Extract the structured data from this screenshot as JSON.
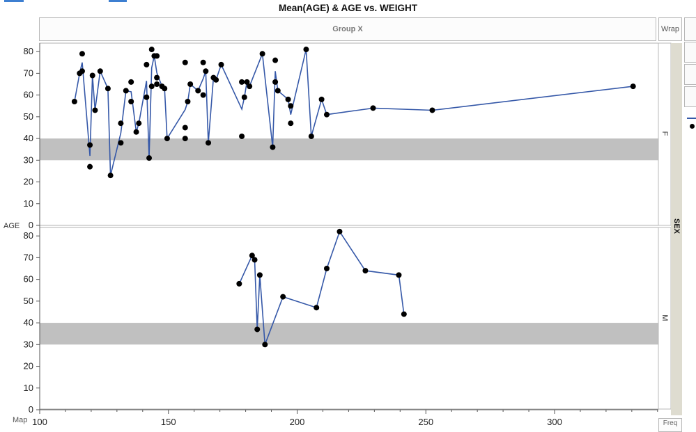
{
  "title": "Mean(AGE) & AGE vs. WEIGHT",
  "group_x_label": "Group X",
  "wrap_label": "Wrap",
  "map_label": "Map",
  "freq_label": "Freq",
  "colors": {
    "line": "#3558a8",
    "point": "#000000",
    "band": "#c0c0c0",
    "strip": "#dedcd0"
  },
  "chart_data": {
    "type": "line",
    "title": "Mean(AGE) & AGE vs. WEIGHT",
    "xlabel": "",
    "ylabel": "AGE",
    "xlim": [
      100,
      340
    ],
    "ylim": [
      0,
      85
    ],
    "x_ticks": [
      100,
      150,
      200,
      250,
      300
    ],
    "y_ticks": [
      0,
      10,
      20,
      30,
      40,
      50,
      60,
      70,
      80
    ],
    "group_y_label": "SEX",
    "reference_band": [
      30,
      40
    ],
    "panels": [
      {
        "group": "F",
        "points": [
          [
            113.5,
            57
          ],
          [
            115.5,
            70
          ],
          [
            116.5,
            71
          ],
          [
            116.5,
            79
          ],
          [
            119.5,
            27
          ],
          [
            119.5,
            37
          ],
          [
            120.5,
            69
          ],
          [
            121.5,
            53
          ],
          [
            123.5,
            71
          ],
          [
            126.5,
            63
          ],
          [
            127.5,
            23
          ],
          [
            131.5,
            38
          ],
          [
            131.5,
            47
          ],
          [
            133.5,
            62
          ],
          [
            135.5,
            66
          ],
          [
            135.5,
            57
          ],
          [
            137.5,
            43
          ],
          [
            138.5,
            47
          ],
          [
            141.5,
            59
          ],
          [
            141.5,
            74
          ],
          [
            142.5,
            31
          ],
          [
            143.5,
            64
          ],
          [
            143.5,
            81
          ],
          [
            144.5,
            78
          ],
          [
            145.5,
            65
          ],
          [
            145.5,
            68
          ],
          [
            145.5,
            78
          ],
          [
            147.5,
            64
          ],
          [
            148.5,
            63
          ],
          [
            149.5,
            40
          ],
          [
            156.5,
            75
          ],
          [
            156.5,
            45
          ],
          [
            156.5,
            40
          ],
          [
            157.5,
            57
          ],
          [
            158.5,
            65
          ],
          [
            161.5,
            62
          ],
          [
            163.5,
            60
          ],
          [
            163.5,
            75
          ],
          [
            164.5,
            71
          ],
          [
            165.5,
            38
          ],
          [
            167.5,
            68
          ],
          [
            168.5,
            67
          ],
          [
            170.5,
            74
          ],
          [
            178.5,
            41
          ],
          [
            178.5,
            66
          ],
          [
            179.5,
            59
          ],
          [
            180.5,
            66
          ],
          [
            181.5,
            64
          ],
          [
            186.5,
            79
          ],
          [
            190.5,
            36
          ],
          [
            191.5,
            66
          ],
          [
            191.5,
            76
          ],
          [
            192.5,
            62
          ],
          [
            196.5,
            58
          ],
          [
            197.5,
            55
          ],
          [
            197.5,
            47
          ],
          [
            203.5,
            81
          ],
          [
            205.5,
            41
          ],
          [
            209.5,
            58
          ],
          [
            211.5,
            51
          ],
          [
            229.5,
            54
          ],
          [
            252.5,
            53
          ],
          [
            330.5,
            64
          ]
        ],
        "mean_line": [
          [
            113.5,
            57
          ],
          [
            115.5,
            70
          ],
          [
            116.5,
            75
          ],
          [
            119.5,
            32
          ],
          [
            120.5,
            69
          ],
          [
            121.5,
            53
          ],
          [
            123.5,
            71
          ],
          [
            126.5,
            63
          ],
          [
            127.5,
            23
          ],
          [
            131.5,
            42.5
          ],
          [
            133.5,
            62
          ],
          [
            135.5,
            61.5
          ],
          [
            137.5,
            43
          ],
          [
            138.5,
            47
          ],
          [
            141.5,
            66.5
          ],
          [
            142.5,
            31
          ],
          [
            143.5,
            72.5
          ],
          [
            144.5,
            78
          ],
          [
            145.5,
            70.3
          ],
          [
            147.5,
            64
          ],
          [
            148.5,
            63
          ],
          [
            149.5,
            40
          ],
          [
            156.5,
            53.3
          ],
          [
            157.5,
            57
          ],
          [
            158.5,
            65
          ],
          [
            161.5,
            62
          ],
          [
            163.5,
            67.5
          ],
          [
            164.5,
            71
          ],
          [
            165.5,
            38
          ],
          [
            167.5,
            68
          ],
          [
            168.5,
            67
          ],
          [
            170.5,
            74
          ],
          [
            178.5,
            53.5
          ],
          [
            179.5,
            59
          ],
          [
            180.5,
            66
          ],
          [
            181.5,
            64
          ],
          [
            186.5,
            79
          ],
          [
            190.5,
            36
          ],
          [
            191.5,
            71
          ],
          [
            192.5,
            62
          ],
          [
            196.5,
            58
          ],
          [
            197.5,
            51
          ],
          [
            203.5,
            81
          ],
          [
            205.5,
            41
          ],
          [
            209.5,
            58
          ],
          [
            211.5,
            51
          ],
          [
            229.5,
            54
          ],
          [
            252.5,
            53
          ],
          [
            330.5,
            64
          ]
        ]
      },
      {
        "group": "M",
        "points": [
          [
            177.5,
            58
          ],
          [
            182.5,
            71
          ],
          [
            183.5,
            69
          ],
          [
            184.5,
            37
          ],
          [
            185.5,
            62
          ],
          [
            187.5,
            30
          ],
          [
            194.5,
            52
          ],
          [
            207.5,
            47
          ],
          [
            211.5,
            65
          ],
          [
            216.5,
            82
          ],
          [
            226.5,
            64
          ],
          [
            239.5,
            62
          ],
          [
            241.5,
            44
          ]
        ],
        "mean_line": [
          [
            177.5,
            58
          ],
          [
            182.5,
            71
          ],
          [
            183.5,
            69
          ],
          [
            184.5,
            37
          ],
          [
            185.5,
            62
          ],
          [
            187.5,
            30
          ],
          [
            194.5,
            52
          ],
          [
            207.5,
            47
          ],
          [
            211.5,
            65
          ],
          [
            216.5,
            82
          ],
          [
            226.5,
            64
          ],
          [
            239.5,
            62
          ],
          [
            241.5,
            44
          ]
        ]
      }
    ]
  }
}
